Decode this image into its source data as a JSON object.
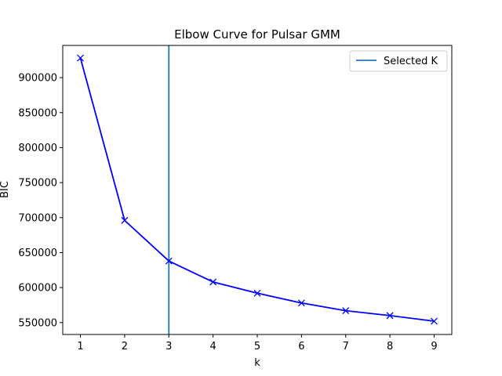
{
  "chart_data": {
    "type": "line",
    "title": "Elbow Curve for Pulsar GMM",
    "xlabel": "k",
    "ylabel": "BIC",
    "x": [
      1,
      2,
      3,
      4,
      5,
      6,
      7,
      8,
      9
    ],
    "series": [
      {
        "values": [
          928000,
          696000,
          638000,
          608000,
          592000,
          578000,
          567000,
          560000,
          552000
        ],
        "color": "#0000ff",
        "marker": "x"
      }
    ],
    "vline": {
      "x": 3,
      "name": "Selected K",
      "color": "#1f77b4"
    },
    "xticks": [
      1,
      2,
      3,
      4,
      5,
      6,
      7,
      8,
      9
    ],
    "yticks": [
      550000,
      600000,
      650000,
      700000,
      750000,
      800000,
      850000,
      900000
    ],
    "xlim": [
      0.6,
      9.4
    ],
    "ylim": [
      533000,
      946000
    ],
    "grid": false,
    "legend_position": "top-right"
  }
}
